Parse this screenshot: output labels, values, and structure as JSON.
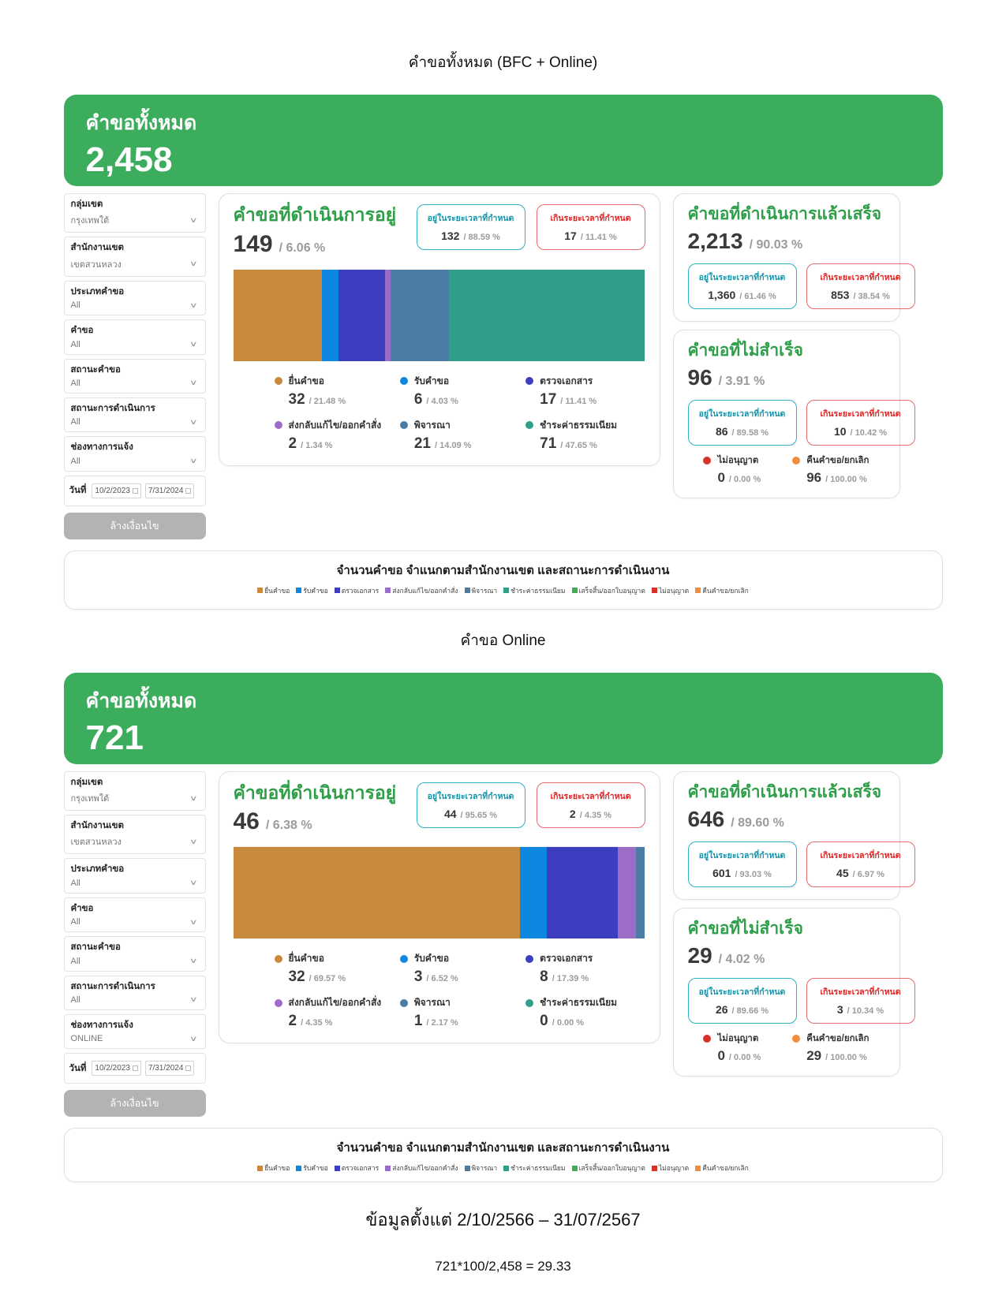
{
  "labels": {
    "in_time": "อยู่ในระยะเวลาที่กำหนด",
    "over_time": "เกินระยะเวลาที่กำหนด",
    "bottom_chart_title": "จำนวนคำขอ  จำแนกตามสำนักงานเขต และสถานะการดำเนินงาน"
  },
  "status_legend": [
    {
      "label": "ยื่นคำขอ",
      "color": "#ca8a3e"
    },
    {
      "label": "รับคำขอ",
      "color": "#0d87e0"
    },
    {
      "label": "ตรวจเอกสาร",
      "color": "#3d3dbf"
    },
    {
      "label": "ส่งกลับแก้ไข/ออกคำสั่ง",
      "color": "#9c6cc9"
    },
    {
      "label": "พิจารณา",
      "color": "#4b7da4"
    },
    {
      "label": "ชำระค่าธรรมเนียม",
      "color": "#2f9f8a"
    },
    {
      "label": "เสร็จสิ้น/ออกใบอนุญาต",
      "color": "#3fae53"
    },
    {
      "label": "ไม่อนุญาต",
      "color": "#d6322a"
    },
    {
      "label": "คืนคำขอ/ยกเลิก",
      "color": "#f28d3d"
    }
  ],
  "chart_data": [
    {
      "type": "bar",
      "stacked": true,
      "orientation": "horizontal",
      "title": "คำขอที่ดำเนินการอยู่ (BFC + Online) — สถานะการดำเนินการ",
      "categories": [
        "ยื่นคำขอ",
        "รับคำขอ",
        "ตรวจเอกสาร",
        "ส่งกลับแก้ไข/ออกคำสั่ง",
        "พิจารณา",
        "ชำระค่าธรรมเนียม"
      ],
      "values": [
        32,
        6,
        17,
        2,
        21,
        71
      ],
      "percents": [
        21.48,
        4.03,
        11.41,
        1.34,
        14.09,
        47.65
      ],
      "colors": [
        "#ca8a3e",
        "#0d87e0",
        "#3d3dbf",
        "#9c6cc9",
        "#4b7da4",
        "#2f9f8a"
      ],
      "total": 149
    },
    {
      "type": "bar",
      "stacked": true,
      "orientation": "horizontal",
      "title": "คำขอที่ดำเนินการอยู่ (Online) — สถานะการดำเนินการ",
      "categories": [
        "ยื่นคำขอ",
        "รับคำขอ",
        "ตรวจเอกสาร",
        "ส่งกลับแก้ไข/ออกคำสั่ง",
        "พิจารณา",
        "ชำระค่าธรรมเนียม"
      ],
      "values": [
        32,
        3,
        8,
        2,
        1,
        0
      ],
      "percents": [
        69.57,
        6.52,
        17.39,
        4.35,
        2.17,
        0.0
      ],
      "colors": [
        "#ca8a3e",
        "#0d87e0",
        "#3d3dbf",
        "#9c6cc9",
        "#4b7da4",
        "#2f9f8a"
      ],
      "total": 46
    }
  ],
  "footer": {
    "line1": "ข้อมูลตั้งแต่ 2/10/2566 – 31/07/2567",
    "line2": "721*100/2,458 = 29.33"
  },
  "sections": [
    {
      "page_title": "คำขอทั้งหมด (BFC + Online)",
      "banner": {
        "label": "คำขอทั้งหมด",
        "total": "2,458"
      },
      "filters": [
        {
          "label": "กลุ่มเขต",
          "value": "กรุงเทพใต้"
        },
        {
          "label": "สำนักงานเขต",
          "value": "เขตสวนหลวง"
        },
        {
          "label": "ประเภทคำขอ",
          "value": "All"
        },
        {
          "label": "คำขอ",
          "value": "All"
        },
        {
          "label": "สถานะคำขอ",
          "value": "All"
        },
        {
          "label": "สถานะการดำเนินการ",
          "value": "All"
        },
        {
          "label": "ช่องทางการแจ้ง",
          "value": "All"
        }
      ],
      "date": {
        "label": "วันที่",
        "from": "10/2/2023",
        "to": "7/31/2024"
      },
      "clear_button": "ล้างเงื่อนไข",
      "in_progress": {
        "title": "คำขอที่ดำเนินการอยู่",
        "value": "149",
        "pct": "/ 6.06 %",
        "in_time": {
          "value": "132",
          "pct": "/ 88.59 %"
        },
        "over_time": {
          "value": "17",
          "pct": "/ 11.41 %"
        }
      },
      "legend": [
        {
          "label": "ยื่นคำขอ",
          "value": "32",
          "pct": "/ 21.48 %",
          "color": "#ca8a3e"
        },
        {
          "label": "รับคำขอ",
          "value": "6",
          "pct": "/ 4.03 %",
          "color": "#0d87e0"
        },
        {
          "label": "ตรวจเอกสาร",
          "value": "17",
          "pct": "/ 11.41 %",
          "color": "#3d3dbf"
        },
        {
          "label": "ส่งกลับแก้ไข/ออกคำสั่ง",
          "value": "2",
          "pct": "/ 1.34 %",
          "color": "#9c6cc9"
        },
        {
          "label": "พิจารณา",
          "value": "21",
          "pct": "/ 14.09 %",
          "color": "#4b7da4"
        },
        {
          "label": "ชำระค่าธรรมเนียม",
          "value": "71",
          "pct": "/ 47.65 %",
          "color": "#2f9f8a"
        }
      ],
      "completed": {
        "title": "คำขอที่ดำเนินการแล้วเสร็จ",
        "value": "2,213",
        "pct": "/ 90.03 %",
        "in_time": {
          "value": "1,360",
          "pct": "/ 61.46 %"
        },
        "over_time": {
          "value": "853",
          "pct": "/ 38.54 %"
        }
      },
      "failed": {
        "title": "คำขอที่ไม่สำเร็จ",
        "value": "96",
        "pct": "/ 3.91 %",
        "in_time": {
          "value": "86",
          "pct": "/ 89.58 %"
        },
        "over_time": {
          "value": "10",
          "pct": "/ 10.42 %"
        },
        "items": [
          {
            "label": "ไม่อนุญาต",
            "value": "0",
            "pct": "/ 0.00 %",
            "color": "#d6322a"
          },
          {
            "label": "คืนคำขอ/ยกเลิก",
            "value": "96",
            "pct": "/ 100.00 %",
            "color": "#f28d3d"
          }
        ]
      }
    },
    {
      "page_title": "คำขอ Online",
      "banner": {
        "label": "คำขอทั้งหมด",
        "total": "721"
      },
      "filters": [
        {
          "label": "กลุ่มเขต",
          "value": "กรุงเทพใต้"
        },
        {
          "label": "สำนักงานเขต",
          "value": "เขตสวนหลวง"
        },
        {
          "label": "ประเภทคำขอ",
          "value": "All"
        },
        {
          "label": "คำขอ",
          "value": "All"
        },
        {
          "label": "สถานะคำขอ",
          "value": "All"
        },
        {
          "label": "สถานะการดำเนินการ",
          "value": "All"
        },
        {
          "label": "ช่องทางการแจ้ง",
          "value": "ONLINE"
        }
      ],
      "date": {
        "label": "วันที่",
        "from": "10/2/2023",
        "to": "7/31/2024"
      },
      "clear_button": "ล้างเงื่อนไข",
      "in_progress": {
        "title": "คำขอที่ดำเนินการอยู่",
        "value": "46",
        "pct": "/ 6.38 %",
        "in_time": {
          "value": "44",
          "pct": "/ 95.65 %"
        },
        "over_time": {
          "value": "2",
          "pct": "/ 4.35 %"
        }
      },
      "legend": [
        {
          "label": "ยื่นคำขอ",
          "value": "32",
          "pct": "/ 69.57 %",
          "color": "#ca8a3e"
        },
        {
          "label": "รับคำขอ",
          "value": "3",
          "pct": "/ 6.52 %",
          "color": "#0d87e0"
        },
        {
          "label": "ตรวจเอกสาร",
          "value": "8",
          "pct": "/ 17.39 %",
          "color": "#3d3dbf"
        },
        {
          "label": "ส่งกลับแก้ไข/ออกคำสั่ง",
          "value": "2",
          "pct": "/ 4.35 %",
          "color": "#9c6cc9"
        },
        {
          "label": "พิจารณา",
          "value": "1",
          "pct": "/ 2.17 %",
          "color": "#4b7da4"
        },
        {
          "label": "ชำระค่าธรรมเนียม",
          "value": "0",
          "pct": "/ 0.00 %",
          "color": "#2f9f8a"
        }
      ],
      "completed": {
        "title": "คำขอที่ดำเนินการแล้วเสร็จ",
        "value": "646",
        "pct": "/ 89.60 %",
        "in_time": {
          "value": "601",
          "pct": "/ 93.03 %"
        },
        "over_time": {
          "value": "45",
          "pct": "/ 6.97 %"
        }
      },
      "failed": {
        "title": "คำขอที่ไม่สำเร็จ",
        "value": "29",
        "pct": "/ 4.02 %",
        "in_time": {
          "value": "26",
          "pct": "/ 89.66 %"
        },
        "over_time": {
          "value": "3",
          "pct": "/ 10.34 %"
        },
        "items": [
          {
            "label": "ไม่อนุญาต",
            "value": "0",
            "pct": "/ 0.00 %",
            "color": "#d6322a"
          },
          {
            "label": "คืนคำขอ/ยกเลิก",
            "value": "29",
            "pct": "/ 100.00 %",
            "color": "#f28d3d"
          }
        ]
      }
    }
  ]
}
